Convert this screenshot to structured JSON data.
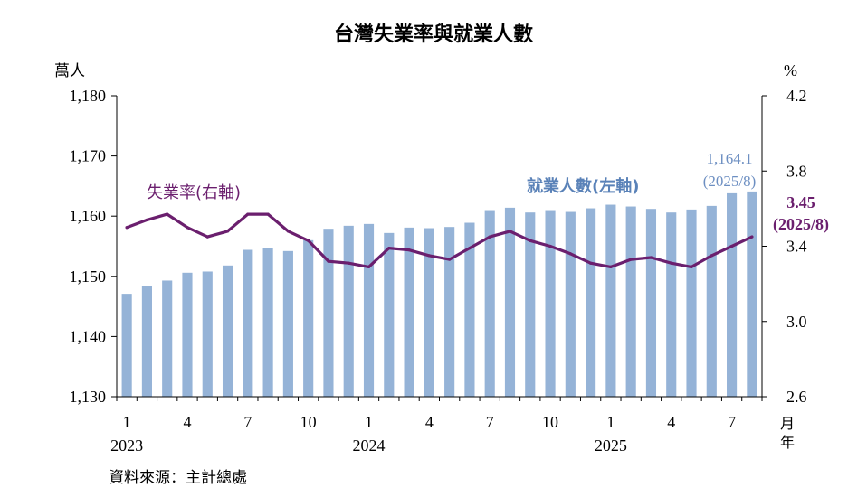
{
  "chart_data": {
    "type": "bar+line",
    "title": "台灣失業率與就業人數",
    "left_axis": {
      "unit_label": "萬人",
      "range": [
        1130,
        1180
      ],
      "ticks": [
        "1,180",
        "1,170",
        "1,160",
        "1,150",
        "1,140",
        "1,130"
      ],
      "tick_values": [
        1180,
        1170,
        1160,
        1150,
        1140,
        1130
      ]
    },
    "right_axis": {
      "unit_label": "%",
      "range": [
        2.6,
        4.2
      ],
      "ticks": [
        "4.2",
        "3.8",
        "3.4",
        "3.0",
        "2.6"
      ],
      "tick_values": [
        4.2,
        3.8,
        3.4,
        3.0,
        2.6
      ]
    },
    "x_axis": {
      "unit_label_month": "月",
      "unit_label_year": "年",
      "tick_labels": [
        {
          "index": 0,
          "label": "1"
        },
        {
          "index": 3,
          "label": "4"
        },
        {
          "index": 6,
          "label": "7"
        },
        {
          "index": 9,
          "label": "10"
        },
        {
          "index": 12,
          "label": "1"
        },
        {
          "index": 15,
          "label": "4"
        },
        {
          "index": 18,
          "label": "7"
        },
        {
          "index": 21,
          "label": "10"
        },
        {
          "index": 24,
          "label": "1"
        },
        {
          "index": 27,
          "label": "4"
        },
        {
          "index": 30,
          "label": "7"
        }
      ],
      "year_labels": [
        {
          "index": 0,
          "label": "2023"
        },
        {
          "index": 12,
          "label": "2024"
        },
        {
          "index": 24,
          "label": "2025"
        }
      ]
    },
    "categories": [
      "2023/1",
      "2023/2",
      "2023/3",
      "2023/4",
      "2023/5",
      "2023/6",
      "2023/7",
      "2023/8",
      "2023/9",
      "2023/10",
      "2023/11",
      "2023/12",
      "2024/1",
      "2024/2",
      "2024/3",
      "2024/4",
      "2024/5",
      "2024/6",
      "2024/7",
      "2024/8",
      "2024/9",
      "2024/10",
      "2024/11",
      "2024/12",
      "2025/1",
      "2025/2",
      "2025/3",
      "2025/4",
      "2025/5",
      "2025/6",
      "2025/7",
      "2025/8"
    ],
    "series": [
      {
        "name": "就業人數(左軸)",
        "type": "bar",
        "axis": "left",
        "color": "#95b3d7",
        "values": [
          1147.1,
          1148.4,
          1149.3,
          1150.6,
          1150.8,
          1151.8,
          1154.4,
          1154.7,
          1154.2,
          1156.0,
          1157.9,
          1158.4,
          1158.7,
          1157.2,
          1158.1,
          1158.0,
          1158.2,
          1158.9,
          1161.0,
          1161.4,
          1160.6,
          1161.0,
          1160.7,
          1161.3,
          1161.9,
          1161.6,
          1161.2,
          1160.6,
          1161.1,
          1161.7,
          1163.8,
          1164.1
        ]
      },
      {
        "name": "失業率(右軸)",
        "type": "line",
        "axis": "right",
        "color": "#6b1f6e",
        "values": [
          3.5,
          3.54,
          3.57,
          3.5,
          3.45,
          3.48,
          3.57,
          3.57,
          3.48,
          3.43,
          3.32,
          3.31,
          3.29,
          3.39,
          3.38,
          3.35,
          3.33,
          3.39,
          3.45,
          3.48,
          3.43,
          3.4,
          3.36,
          3.31,
          3.29,
          3.33,
          3.34,
          3.31,
          3.29,
          3.35,
          3.4,
          3.45
        ]
      }
    ],
    "annotations": {
      "line_label": "失業率(右軸)",
      "bar_label": "就業人數(左軸)",
      "bar_last_value": "1,164.1",
      "bar_last_period": "(2025/8)",
      "line_last_value": "3.45",
      "line_last_period": "(2025/8)"
    }
  },
  "source": "資料來源：主計總處"
}
